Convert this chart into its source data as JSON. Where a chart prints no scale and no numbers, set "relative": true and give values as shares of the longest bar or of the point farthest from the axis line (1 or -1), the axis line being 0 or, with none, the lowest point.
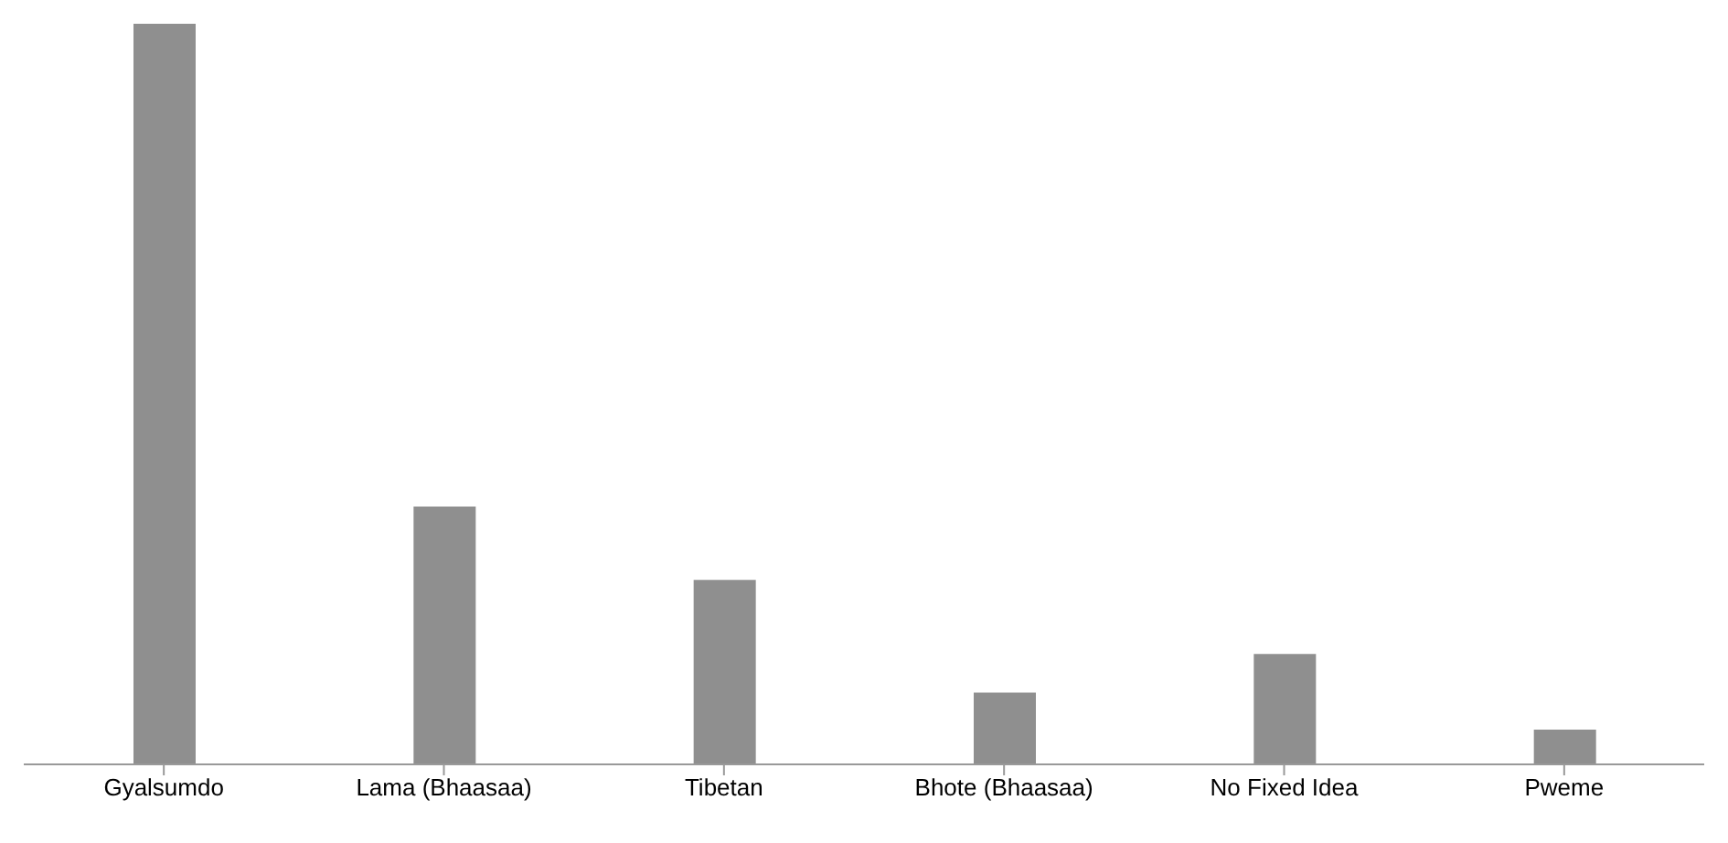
{
  "chart_data": {
    "type": "bar",
    "relative": true,
    "categories": [
      "Gyalsumdo",
      "Lama (Bhaasaa)",
      "Tibetan",
      "Bhote (Bhaasaa)",
      "No Fixed Idea",
      "Pweme"
    ],
    "values": [
      1,
      0.348,
      0.249,
      0.097,
      0.149,
      0.047
    ],
    "color": "#8f8f8f",
    "grid": false,
    "legend": false
  }
}
